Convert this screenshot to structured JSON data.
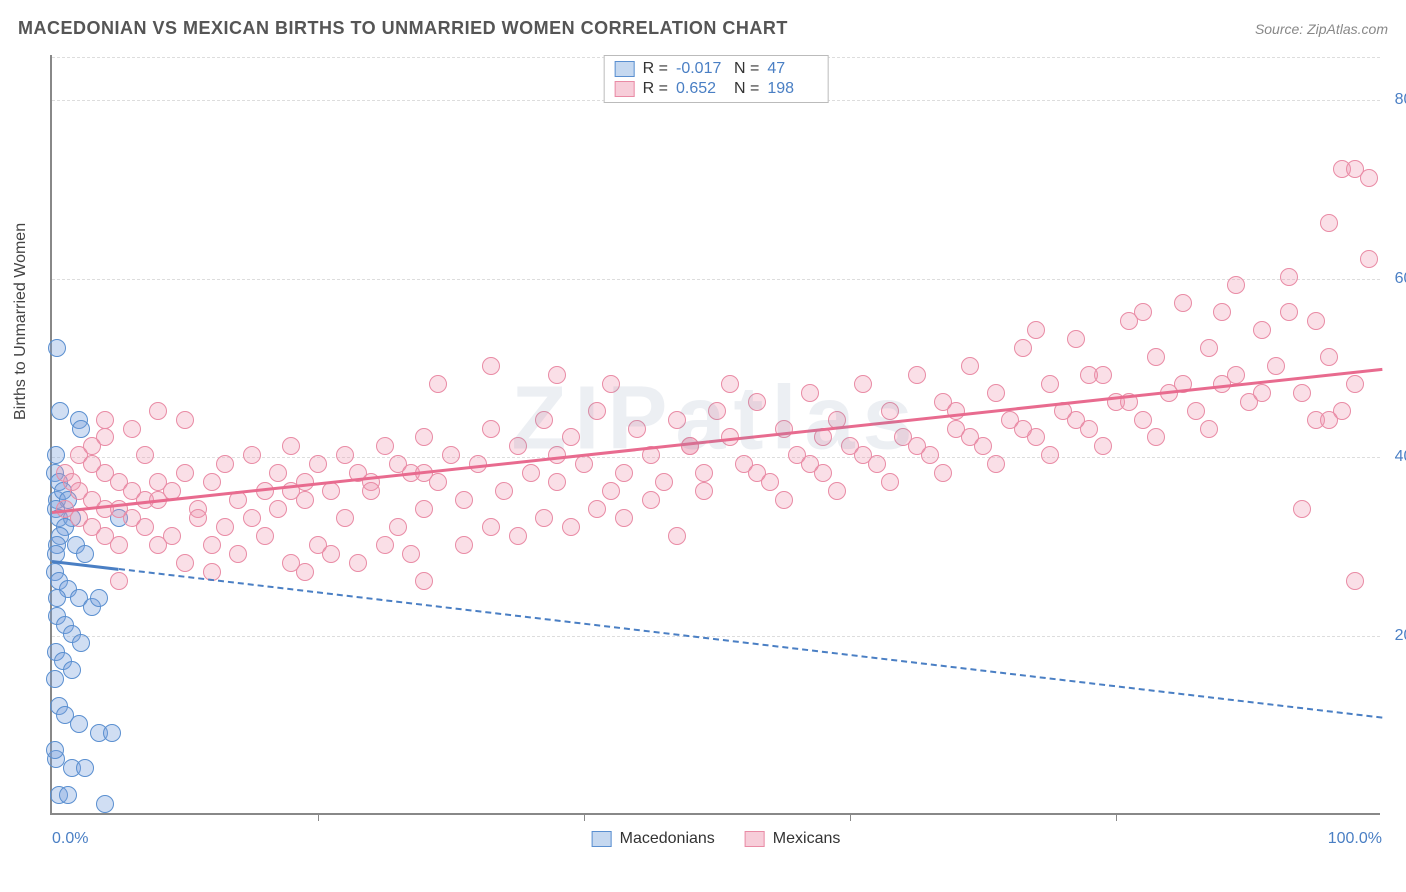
{
  "title": "MACEDONIAN VS MEXICAN BIRTHS TO UNMARRIED WOMEN CORRELATION CHART",
  "source": "Source: ZipAtlas.com",
  "watermark": "ZIPatlas",
  "ylabel": "Births to Unmarried Women",
  "chart": {
    "type": "scatter",
    "xlim": [
      0,
      100
    ],
    "ylim": [
      0,
      85
    ],
    "x_ticks": [
      0,
      20,
      40,
      60,
      80,
      100
    ],
    "x_tick_labels_shown": {
      "0": "0.0%",
      "100": "100.0%"
    },
    "y_ticks": [
      20,
      40,
      60,
      80
    ],
    "y_tick_labels": [
      "20.0%",
      "40.0%",
      "60.0%",
      "80.0%"
    ],
    "grid_color": "#dddddd",
    "axis_color": "#888888",
    "tick_label_color": "#4a7fc4",
    "background_color": "#ffffff",
    "marker_radius": 9,
    "marker_stroke_width": 1.5
  },
  "series": [
    {
      "name": "Macedonians",
      "color_fill": "rgba(120,160,220,0.35)",
      "color_stroke": "#5a8fd0",
      "swatch_fill": "#c5d8f0",
      "swatch_border": "#5a8fd0",
      "R": "-0.017",
      "N": "47",
      "trend": {
        "x0": 0,
        "y0": 28.5,
        "x1": 100,
        "y1": 11,
        "solid_until_x": 5,
        "color": "#4a7fc4"
      },
      "points": [
        [
          0.3,
          40
        ],
        [
          0.2,
          38
        ],
        [
          0.5,
          37
        ],
        [
          0.4,
          35
        ],
        [
          0.8,
          36
        ],
        [
          1.2,
          35
        ],
        [
          0.3,
          34
        ],
        [
          0.4,
          52
        ],
        [
          0.5,
          33
        ],
        [
          1.5,
          33
        ],
        [
          2.0,
          44
        ],
        [
          2.2,
          43
        ],
        [
          1.0,
          32
        ],
        [
          0.6,
          31
        ],
        [
          0.4,
          30
        ],
        [
          0.3,
          29
        ],
        [
          1.8,
          30
        ],
        [
          2.5,
          29
        ],
        [
          0.2,
          27
        ],
        [
          0.5,
          26
        ],
        [
          1.2,
          25
        ],
        [
          2.0,
          24
        ],
        [
          3.0,
          23
        ],
        [
          3.5,
          24
        ],
        [
          0.4,
          22
        ],
        [
          1.0,
          21
        ],
        [
          1.5,
          20
        ],
        [
          2.2,
          19
        ],
        [
          0.3,
          18
        ],
        [
          0.8,
          17
        ],
        [
          1.5,
          16
        ],
        [
          0.2,
          15
        ],
        [
          0.5,
          12
        ],
        [
          1.0,
          11
        ],
        [
          2.0,
          10
        ],
        [
          3.5,
          9
        ],
        [
          4.5,
          9
        ],
        [
          0.3,
          6
        ],
        [
          0.2,
          7
        ],
        [
          0.4,
          24
        ],
        [
          1.5,
          5
        ],
        [
          2.5,
          5
        ],
        [
          0.5,
          2
        ],
        [
          1.2,
          2
        ],
        [
          4.0,
          1
        ],
        [
          5.0,
          33
        ],
        [
          0.6,
          45
        ]
      ]
    },
    {
      "name": "Mexicans",
      "color_fill": "rgba(240,150,175,0.3)",
      "color_stroke": "#e98ba5",
      "swatch_fill": "#f7cdd9",
      "swatch_border": "#e98ba5",
      "R": "0.652",
      "N": "198",
      "trend": {
        "x0": 0,
        "y0": 34,
        "x1": 100,
        "y1": 50,
        "solid_until_x": 100,
        "color": "#e86b8f"
      },
      "points": [
        [
          1,
          38
        ],
        [
          2,
          40
        ],
        [
          1.5,
          37
        ],
        [
          3,
          39
        ],
        [
          2,
          36
        ],
        [
          4,
          38
        ],
        [
          3,
          35
        ],
        [
          5,
          37
        ],
        [
          1,
          34
        ],
        [
          4,
          34
        ],
        [
          6,
          36
        ],
        [
          2,
          33
        ],
        [
          5,
          34
        ],
        [
          7,
          35
        ],
        [
          3,
          32
        ],
        [
          8,
          37
        ],
        [
          4,
          31
        ],
        [
          9,
          36
        ],
        [
          6,
          33
        ],
        [
          10,
          38
        ],
        [
          5,
          30
        ],
        [
          11,
          34
        ],
        [
          7,
          32
        ],
        [
          12,
          37
        ],
        [
          8,
          30
        ],
        [
          13,
          39
        ],
        [
          9,
          31
        ],
        [
          14,
          35
        ],
        [
          10,
          28
        ],
        [
          15,
          40
        ],
        [
          11,
          33
        ],
        [
          16,
          36
        ],
        [
          12,
          30
        ],
        [
          17,
          38
        ],
        [
          13,
          32
        ],
        [
          18,
          41
        ],
        [
          14,
          29
        ],
        [
          19,
          37
        ],
        [
          15,
          33
        ],
        [
          20,
          39
        ],
        [
          16,
          31
        ],
        [
          21,
          36
        ],
        [
          17,
          34
        ],
        [
          22,
          40
        ],
        [
          18,
          28
        ],
        [
          23,
          38
        ],
        [
          19,
          35
        ],
        [
          24,
          37
        ],
        [
          20,
          30
        ],
        [
          25,
          41
        ],
        [
          22,
          33
        ],
        [
          26,
          39
        ],
        [
          24,
          36
        ],
        [
          27,
          38
        ],
        [
          26,
          32
        ],
        [
          28,
          42
        ],
        [
          28,
          34
        ],
        [
          29,
          37
        ],
        [
          30,
          40
        ],
        [
          31,
          35
        ],
        [
          32,
          39
        ],
        [
          33,
          43
        ],
        [
          34,
          36
        ],
        [
          35,
          41
        ],
        [
          36,
          38
        ],
        [
          37,
          44
        ],
        [
          38,
          37
        ],
        [
          39,
          42
        ],
        [
          40,
          39
        ],
        [
          41,
          45
        ],
        [
          42,
          36
        ],
        [
          43,
          38
        ],
        [
          44,
          43
        ],
        [
          45,
          40
        ],
        [
          46,
          37
        ],
        [
          47,
          44
        ],
        [
          48,
          41
        ],
        [
          49,
          38
        ],
        [
          50,
          45
        ],
        [
          51,
          42
        ],
        [
          52,
          39
        ],
        [
          53,
          46
        ],
        [
          54,
          37
        ],
        [
          55,
          43
        ],
        [
          56,
          40
        ],
        [
          57,
          47
        ],
        [
          58,
          38
        ],
        [
          59,
          44
        ],
        [
          60,
          41
        ],
        [
          61,
          48
        ],
        [
          62,
          39
        ],
        [
          63,
          45
        ],
        [
          64,
          42
        ],
        [
          65,
          49
        ],
        [
          66,
          40
        ],
        [
          67,
          46
        ],
        [
          68,
          43
        ],
        [
          69,
          50
        ],
        [
          70,
          41
        ],
        [
          71,
          47
        ],
        [
          72,
          44
        ],
        [
          73,
          52
        ],
        [
          74,
          42
        ],
        [
          75,
          48
        ],
        [
          76,
          45
        ],
        [
          77,
          53
        ],
        [
          78,
          43
        ],
        [
          79,
          49
        ],
        [
          80,
          46
        ],
        [
          81,
          55
        ],
        [
          82,
          44
        ],
        [
          83,
          51
        ],
        [
          84,
          47
        ],
        [
          85,
          57
        ],
        [
          86,
          45
        ],
        [
          87,
          52
        ],
        [
          88,
          48
        ],
        [
          89,
          59
        ],
        [
          90,
          46
        ],
        [
          91,
          54
        ],
        [
          92,
          50
        ],
        [
          93,
          60
        ],
        [
          94,
          47
        ],
        [
          95,
          55
        ],
        [
          96,
          51
        ],
        [
          97,
          72
        ],
        [
          98,
          48
        ],
        [
          99,
          71
        ],
        [
          97,
          45
        ],
        [
          95,
          44
        ],
        [
          93,
          56
        ],
        [
          91,
          47
        ],
        [
          89,
          49
        ],
        [
          87,
          43
        ],
        [
          85,
          48
        ],
        [
          83,
          42
        ],
        [
          81,
          46
        ],
        [
          79,
          41
        ],
        [
          77,
          44
        ],
        [
          75,
          40
        ],
        [
          73,
          43
        ],
        [
          71,
          39
        ],
        [
          69,
          42
        ],
        [
          67,
          38
        ],
        [
          65,
          41
        ],
        [
          63,
          37
        ],
        [
          61,
          40
        ],
        [
          59,
          36
        ],
        [
          57,
          39
        ],
        [
          55,
          35
        ],
        [
          53,
          38
        ],
        [
          51,
          48
        ],
        [
          49,
          36
        ],
        [
          47,
          31
        ],
        [
          45,
          35
        ],
        [
          43,
          33
        ],
        [
          41,
          34
        ],
        [
          39,
          32
        ],
        [
          37,
          33
        ],
        [
          35,
          31
        ],
        [
          33,
          32
        ],
        [
          31,
          30
        ],
        [
          29,
          48
        ],
        [
          27,
          29
        ],
        [
          25,
          30
        ],
        [
          23,
          28
        ],
        [
          21,
          29
        ],
        [
          19,
          27
        ],
        [
          96,
          66
        ],
        [
          99,
          62
        ],
        [
          94,
          34
        ],
        [
          96,
          44
        ],
        [
          98,
          26
        ],
        [
          33,
          50
        ],
        [
          38,
          49
        ],
        [
          42,
          48
        ],
        [
          5,
          26
        ],
        [
          28,
          26
        ],
        [
          12,
          27
        ],
        [
          4,
          42
        ],
        [
          4,
          44
        ],
        [
          6,
          43
        ],
        [
          8,
          45
        ],
        [
          10,
          44
        ],
        [
          3,
          41
        ],
        [
          7,
          40
        ],
        [
          98,
          72
        ],
        [
          88,
          56
        ],
        [
          78,
          49
        ],
        [
          68,
          45
        ],
        [
          58,
          42
        ],
        [
          48,
          41
        ],
        [
          38,
          40
        ],
        [
          28,
          38
        ],
        [
          18,
          36
        ],
        [
          8,
          35
        ],
        [
          74,
          54
        ],
        [
          82,
          56
        ]
      ]
    }
  ],
  "legend": {
    "items": [
      "Macedonians",
      "Mexicans"
    ]
  }
}
